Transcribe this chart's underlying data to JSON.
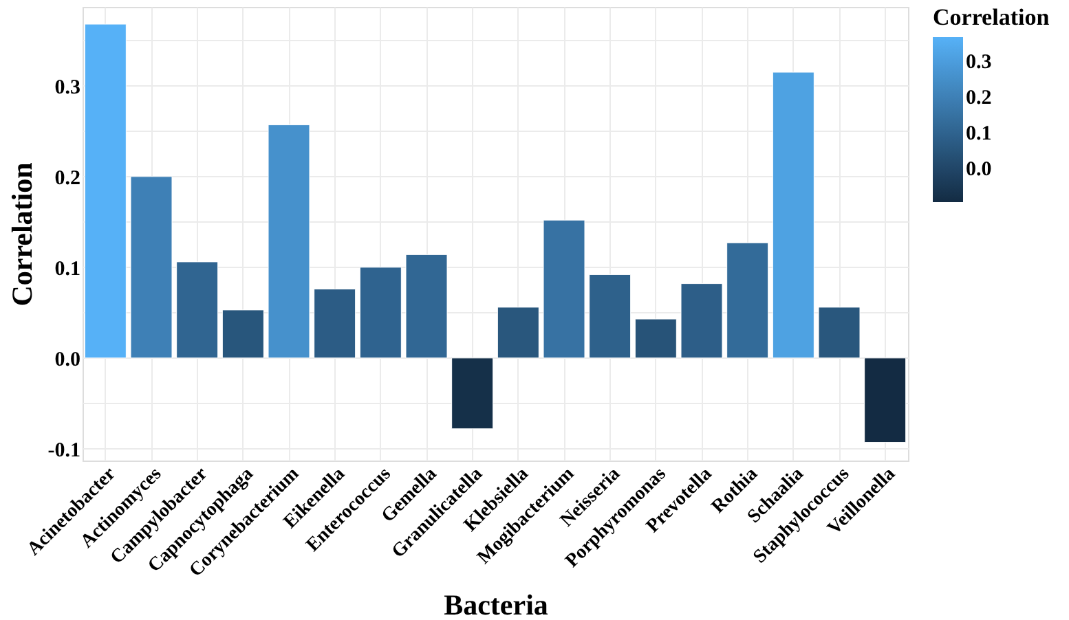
{
  "chart_data": {
    "type": "bar",
    "xlabel": "Bacteria",
    "ylabel": "Correlation",
    "clabel": "Correlation",
    "categories": [
      "Acinetobacter",
      "Actinomyces",
      "Campylobacter",
      "Capnocytophaga",
      "Corynebacterium",
      "Eikenella",
      "Enterococcus",
      "Gemella",
      "Granulicatella",
      "Klebsiella",
      "Mogibacterium",
      "Neisseria",
      "Porphyromonas",
      "Prevotella",
      "Rothia",
      "Schaalia",
      "Staphylococcus",
      "Veillonella"
    ],
    "values": [
      0.368,
      0.2,
      0.106,
      0.053,
      0.257,
      0.076,
      0.1,
      0.114,
      -0.078,
      0.056,
      0.152,
      0.092,
      0.043,
      0.082,
      0.127,
      0.315,
      0.056,
      -0.093
    ],
    "colors": [
      "#56b1f7",
      "#3e80b6",
      "#306591",
      "#28567c",
      "#4691cc",
      "#2c5c85",
      "#2f638f",
      "#316794",
      "#153049",
      "#29577e",
      "#3772a3",
      "#2e618c",
      "#275378",
      "#2d5e88",
      "#336b99",
      "#4ea2e2",
      "#29577e",
      "#132b43"
    ],
    "ylim": [
      -0.113,
      0.387
    ],
    "yticks": [
      -0.1,
      {
        "value": -0.05,
        "label": null
      },
      {
        "value": 0,
        "label": "0.0"
      },
      {
        "value": 0.05,
        "label": null
      },
      0.1,
      {
        "value": 0.15,
        "label": null
      },
      0.2,
      {
        "value": 0.25,
        "label": null
      },
      0.3,
      {
        "value": 0.35,
        "label": null
      }
    ],
    "clim": [
      -0.094,
      0.368
    ],
    "cticks": [
      {
        "value": 0,
        "label": "0.0"
      },
      0.1,
      0.2,
      0.3
    ],
    "grid": true
  }
}
